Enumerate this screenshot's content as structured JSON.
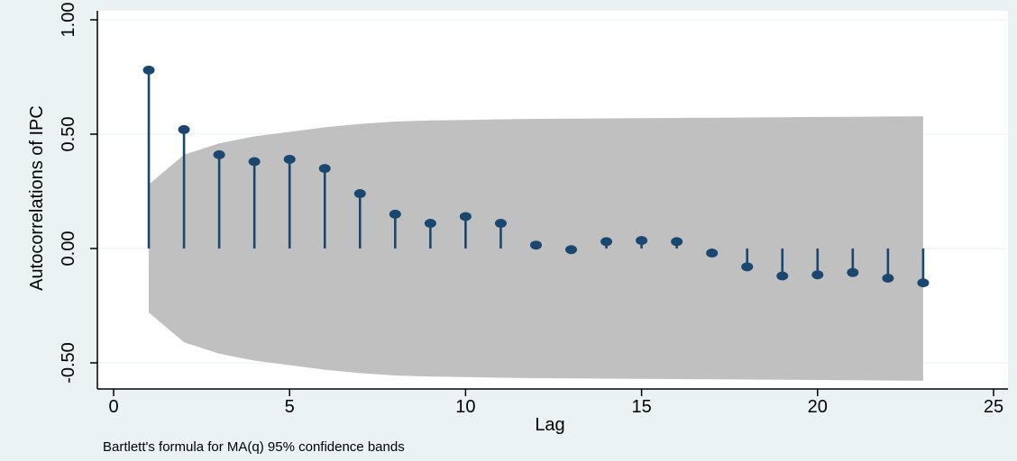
{
  "chart_data": {
    "type": "line",
    "subtype": "autocorrelation-stem",
    "title": "",
    "xlabel": "Lag",
    "ylabel": "Autocorrelations of IPC",
    "note": "Bartlett's formula for MA(q) 95% confidence bands",
    "xlim": [
      0,
      25
    ],
    "ylim": [
      -0.6,
      1.0
    ],
    "x_ticks": [
      0,
      5,
      10,
      15,
      20,
      25
    ],
    "x_tick_labels": [
      "0",
      "5",
      "10",
      "15",
      "20",
      "25"
    ],
    "y_ticks": [
      -0.5,
      0,
      0.5,
      1
    ],
    "y_tick_labels": [
      "-0.50",
      "0.00",
      "0.50",
      "1.00"
    ],
    "grid": true,
    "legend": "none",
    "series": [
      {
        "x": [
          1,
          2,
          3,
          4,
          5,
          6,
          7,
          8,
          9,
          10,
          11,
          12,
          13,
          14,
          15,
          16,
          17,
          18,
          19,
          20,
          21,
          22,
          23
        ],
        "values": [
          0.78,
          0.52,
          0.41,
          0.38,
          0.39,
          0.35,
          0.24,
          0.15,
          0.11,
          0.14,
          0.11,
          0.015,
          -0.005,
          0.03,
          0.035,
          0.03,
          -0.02,
          -0.08,
          -0.12,
          -0.115,
          -0.105,
          -0.13,
          -0.15
        ]
      }
    ],
    "confidence_band": {
      "x": [
        1,
        2,
        3,
        4,
        5,
        6,
        7,
        8,
        9,
        10,
        11,
        12,
        13,
        14,
        15,
        16,
        17,
        18,
        19,
        20,
        21,
        22,
        23
      ],
      "upper": [
        0.28,
        0.41,
        0.46,
        0.49,
        0.51,
        0.53,
        0.545,
        0.555,
        0.56,
        0.562,
        0.565,
        0.567,
        0.568,
        0.569,
        0.57,
        0.571,
        0.572,
        0.573,
        0.574,
        0.575,
        0.576,
        0.577,
        0.578
      ],
      "lower": [
        -0.28,
        -0.41,
        -0.46,
        -0.49,
        -0.51,
        -0.53,
        -0.545,
        -0.555,
        -0.56,
        -0.562,
        -0.565,
        -0.567,
        -0.568,
        -0.569,
        -0.57,
        -0.571,
        -0.572,
        -0.573,
        -0.574,
        -0.575,
        -0.576,
        -0.577,
        -0.578
      ]
    },
    "colors": {
      "page_background": "#eaf2f3",
      "plot_background": "#ffffff",
      "band": "#c0c0c0",
      "stem": "#1a476f",
      "grid": "#eaf2f3",
      "axis": "#000000"
    }
  }
}
